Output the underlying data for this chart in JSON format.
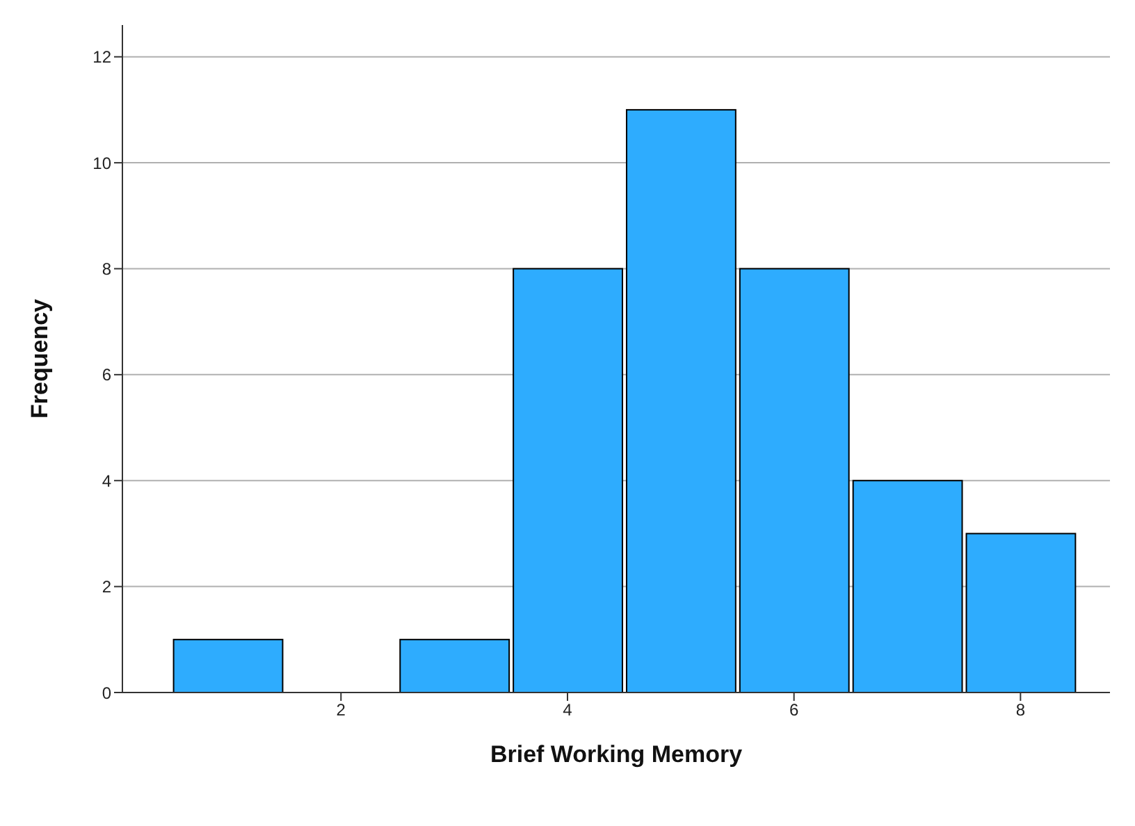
{
  "chart_data": {
    "type": "histogram",
    "xlabel": "Brief Working Memory",
    "ylabel": "Frequency",
    "bins": [
      0.5,
      1.5,
      2.5,
      3.5,
      4.5,
      5.5,
      6.5,
      7.5,
      8.5
    ],
    "values": [
      1,
      0,
      1,
      8,
      11,
      8,
      4,
      3
    ],
    "color": "#2eacfe",
    "xlim": [
      0.07,
      8.79
    ],
    "xticks": [
      2,
      4,
      6,
      8
    ],
    "ylim": [
      0,
      12.6
    ],
    "yticks": [
      0,
      2,
      4,
      6,
      8,
      10,
      12
    ],
    "grid": "y"
  }
}
